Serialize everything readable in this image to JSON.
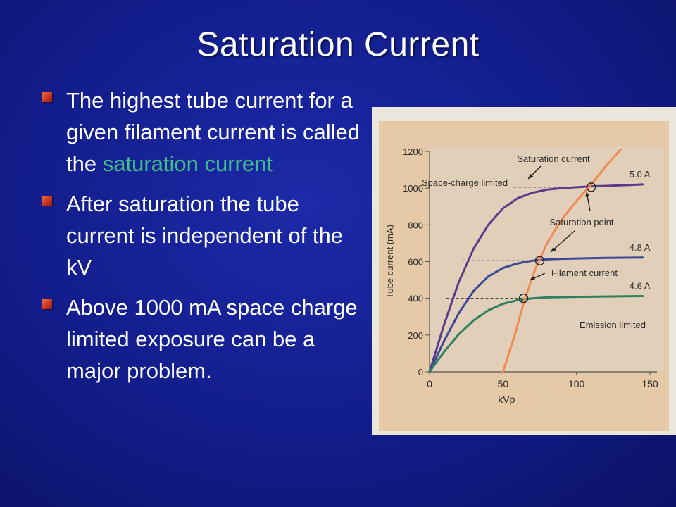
{
  "slide": {
    "title": "Saturation Current",
    "bullets": [
      {
        "pre": "The highest tube current for a given filament current is called the ",
        "highlight": "saturation current"
      },
      {
        "pre": "After saturation the tube current is independent of the kV",
        "highlight": ""
      },
      {
        "pre": "Above 1000 mA space charge limited exposure can be a major problem.",
        "highlight": ""
      }
    ],
    "colors": {
      "background": "#121c8a",
      "title": "#ffffff",
      "text": "#ffffff",
      "highlight": "#3fbf8a",
      "bullet_marker": "#c7321a"
    }
  },
  "chart_data": {
    "type": "line",
    "xlabel": "kVp",
    "ylabel": "Tube current (mA)",
    "xlim": [
      0,
      150
    ],
    "ylim": [
      0,
      1200
    ],
    "x_ticks": [
      "0",
      "50",
      "100",
      "150"
    ],
    "y_ticks": [
      "0",
      "200",
      "400",
      "600",
      "800",
      "1000",
      "1200"
    ],
    "series": [
      {
        "name": "5.0 A",
        "color": "#5a3c8c",
        "x": [
          0,
          10,
          20,
          30,
          40,
          50,
          60,
          70,
          80,
          90,
          100,
          110,
          120,
          130,
          145
        ],
        "y": [
          0,
          260,
          490,
          670,
          800,
          890,
          945,
          975,
          992,
          1000,
          1005,
          1010,
          1012,
          1015,
          1020
        ]
      },
      {
        "name": "4.8 A",
        "color": "#3b4a96",
        "x": [
          0,
          10,
          20,
          30,
          40,
          50,
          60,
          70,
          80,
          90,
          100,
          120,
          145
        ],
        "y": [
          0,
          170,
          320,
          440,
          520,
          565,
          590,
          605,
          612,
          615,
          617,
          620,
          622
        ]
      },
      {
        "name": "4.6 A",
        "color": "#2e8060",
        "x": [
          0,
          10,
          20,
          30,
          40,
          50,
          60,
          70,
          80,
          100,
          120,
          145
        ],
        "y": [
          0,
          110,
          205,
          280,
          335,
          370,
          390,
          400,
          405,
          408,
          410,
          412
        ]
      },
      {
        "name": "Saturation",
        "color": "#f08a52",
        "x": [
          50,
          58,
          65,
          72,
          80,
          90,
          100,
          110,
          120,
          130
        ],
        "y": [
          0,
          200,
          400,
          560,
          700,
          830,
          930,
          1020,
          1120,
          1210
        ]
      }
    ],
    "annotations": [
      "Saturation current",
      "Space-charge limited",
      "Saturation point",
      "Filament current",
      "Emission limited"
    ],
    "saturation_points": [
      {
        "x": 110,
        "y": 1005
      },
      {
        "x": 75,
        "y": 605
      },
      {
        "x": 64,
        "y": 400
      }
    ]
  }
}
